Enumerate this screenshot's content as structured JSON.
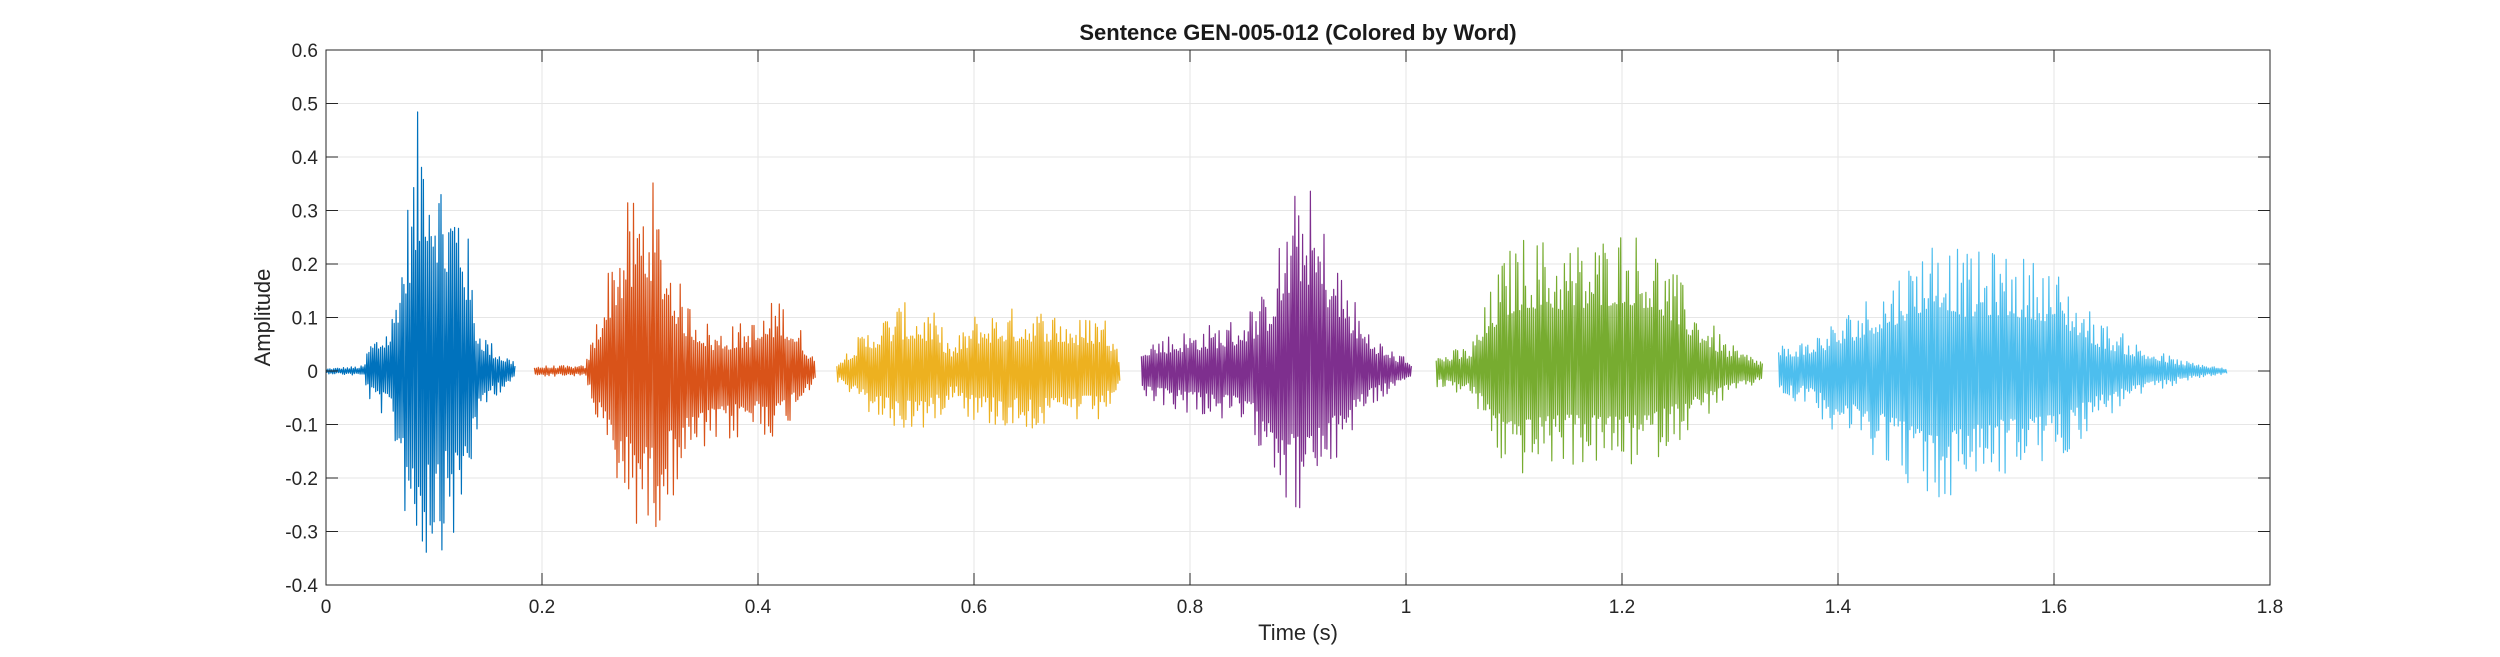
{
  "chart_data": {
    "type": "line",
    "title": "Sentence GEN-005-012 (Colored by Word)",
    "xlabel": "Time (s)",
    "ylabel": "Amplitude",
    "xlim": [
      0,
      1.8
    ],
    "ylim": [
      -0.4,
      0.6
    ],
    "xticks": [
      0,
      0.2,
      0.4,
      0.6,
      0.8,
      1,
      1.2,
      1.4,
      1.6,
      1.8
    ],
    "xtick_labels": [
      "0",
      "0.2",
      "0.4",
      "0.6",
      "0.8",
      "1",
      "1.2",
      "1.4",
      "1.6",
      "1.8"
    ],
    "yticks": [
      -0.4,
      -0.3,
      -0.2,
      -0.1,
      0,
      0.1,
      0.2,
      0.3,
      0.4,
      0.5,
      0.6
    ],
    "ytick_labels": [
      "-0.4",
      "-0.3",
      "-0.2",
      "-0.1",
      "0",
      "0.1",
      "0.2",
      "0.3",
      "0.4",
      "0.5",
      "0.6"
    ],
    "grid": true,
    "series": [
      {
        "color": "#0072BD",
        "x_range": [
          0.0,
          0.175
        ],
        "envelope_t": [
          0.0,
          0.035,
          0.04,
          0.06,
          0.075,
          0.085,
          0.09,
          0.11,
          0.125,
          0.14,
          0.155,
          0.175
        ],
        "envelope_max": [
          0.005,
          0.01,
          0.06,
          0.1,
          0.32,
          0.49,
          0.57,
          0.38,
          0.38,
          0.1,
          0.05,
          0.02
        ],
        "envelope_min": [
          -0.005,
          -0.01,
          -0.06,
          -0.1,
          -0.3,
          -0.37,
          -0.37,
          -0.33,
          -0.33,
          -0.12,
          -0.05,
          -0.02
        ]
      },
      {
        "color": "#D95319",
        "x_range": [
          0.193,
          0.453
        ],
        "envelope_t": [
          0.193,
          0.24,
          0.25,
          0.27,
          0.29,
          0.3,
          0.33,
          0.36,
          0.4,
          0.42,
          0.44,
          0.453
        ],
        "envelope_max": [
          0.01,
          0.01,
          0.1,
          0.28,
          0.36,
          0.38,
          0.15,
          0.08,
          0.1,
          0.15,
          0.08,
          0.02
        ],
        "envelope_min": [
          -0.01,
          -0.01,
          -0.1,
          -0.25,
          -0.3,
          -0.32,
          -0.2,
          -0.15,
          -0.12,
          -0.13,
          -0.06,
          -0.02
        ]
      },
      {
        "color": "#EDB120",
        "x_range": [
          0.473,
          0.735
        ],
        "envelope_t": [
          0.473,
          0.5,
          0.53,
          0.56,
          0.58,
          0.6,
          0.63,
          0.67,
          0.7,
          0.72,
          0.735
        ],
        "envelope_max": [
          0.02,
          0.08,
          0.13,
          0.12,
          0.05,
          0.11,
          0.12,
          0.12,
          0.1,
          0.12,
          0.03
        ],
        "envelope_min": [
          -0.02,
          -0.08,
          -0.12,
          -0.11,
          -0.05,
          -0.1,
          -0.11,
          -0.11,
          -0.1,
          -0.1,
          -0.03
        ]
      },
      {
        "color": "#7E2F8E",
        "x_range": [
          0.755,
          1.005
        ],
        "envelope_t": [
          0.755,
          0.8,
          0.84,
          0.87,
          0.89,
          0.905,
          0.93,
          0.96,
          0.98,
          1.005
        ],
        "envelope_max": [
          0.06,
          0.08,
          0.1,
          0.15,
          0.3,
          0.38,
          0.25,
          0.1,
          0.05,
          0.02
        ],
        "envelope_min": [
          -0.06,
          -0.08,
          -0.1,
          -0.15,
          -0.25,
          -0.28,
          -0.2,
          -0.08,
          -0.05,
          -0.02
        ]
      },
      {
        "color": "#77AC30",
        "x_range": [
          1.028,
          1.33
        ],
        "envelope_t": [
          1.028,
          1.06,
          1.09,
          1.11,
          1.14,
          1.17,
          1.2,
          1.23,
          1.27,
          1.3,
          1.33
        ],
        "envelope_max": [
          0.03,
          0.05,
          0.22,
          0.26,
          0.25,
          0.25,
          0.28,
          0.25,
          0.12,
          0.05,
          0.02
        ],
        "envelope_min": [
          -0.03,
          -0.05,
          -0.19,
          -0.2,
          -0.18,
          -0.18,
          -0.19,
          -0.17,
          -0.1,
          -0.05,
          -0.02
        ]
      },
      {
        "color": "#4DBEEE",
        "x_range": [
          1.345,
          1.76
        ],
        "envelope_t": [
          1.345,
          1.37,
          1.4,
          1.45,
          1.49,
          1.52,
          1.55,
          1.6,
          1.64,
          1.68,
          1.72,
          1.76
        ],
        "envelope_max": [
          0.05,
          0.06,
          0.1,
          0.18,
          0.27,
          0.22,
          0.23,
          0.2,
          0.1,
          0.05,
          0.02,
          0.005
        ],
        "envelope_min": [
          -0.05,
          -0.06,
          -0.12,
          -0.18,
          -0.27,
          -0.22,
          -0.2,
          -0.18,
          -0.1,
          -0.05,
          -0.02,
          -0.005
        ]
      }
    ]
  }
}
